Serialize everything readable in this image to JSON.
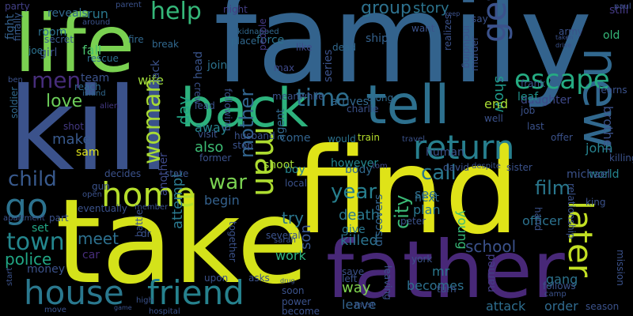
{
  "words": [
    {
      "t": "find",
      "c": "#dfe318"
    },
    {
      "t": "take",
      "c": "#d4e21a"
    },
    {
      "t": "family",
      "c": "#33638d"
    },
    {
      "t": "kill",
      "c": "#3b528b"
    },
    {
      "t": "father",
      "c": "#482878"
    },
    {
      "t": "life",
      "c": "#7ad151"
    },
    {
      "t": "back",
      "c": "#2db27d"
    },
    {
      "t": "tell",
      "c": "#2d708e"
    },
    {
      "t": "home",
      "c": "#b5de2b"
    },
    {
      "t": "house",
      "c": "#2a788e"
    },
    {
      "t": "friend",
      "c": "#26828e"
    },
    {
      "t": "new",
      "c": "#31688e"
    },
    {
      "t": "return",
      "c": "#277f8e"
    },
    {
      "t": "later",
      "c": "#c2df23"
    },
    {
      "t": "man",
      "c": "#addc30"
    },
    {
      "t": "go",
      "c": "#2c728e"
    },
    {
      "t": "men",
      "c": "#472d7b"
    },
    {
      "t": "time",
      "c": "#2e6e8e"
    },
    {
      "t": "escape",
      "c": "#25ab82"
    },
    {
      "t": "get",
      "c": "#3b528b"
    },
    {
      "t": "help",
      "c": "#35b779"
    },
    {
      "t": "woman",
      "c": "#a8db34"
    },
    {
      "t": "town",
      "c": "#24878e"
    },
    {
      "t": "child",
      "c": "#38598c"
    },
    {
      "t": "war",
      "c": "#7ad151"
    },
    {
      "t": "year",
      "c": "#277f8e"
    },
    {
      "t": "love",
      "c": "#6ccd5a"
    },
    {
      "t": "mother",
      "c": "#32658e"
    },
    {
      "t": "group",
      "c": "#2d718e"
    },
    {
      "t": "city",
      "c": "#3aba76"
    },
    {
      "t": "call",
      "c": "#2a778e"
    },
    {
      "t": "film",
      "c": "#2a788e"
    },
    {
      "t": "meet",
      "c": "#2d708e"
    },
    {
      "t": "police",
      "c": "#21a685"
    },
    {
      "t": "day",
      "c": "#22a785"
    },
    {
      "t": "school",
      "c": "#3b528b"
    },
    {
      "t": "killed",
      "c": "#2c738e"
    },
    {
      "t": "death",
      "c": "#2a788e"
    },
    {
      "t": "try",
      "c": "#2a768e"
    },
    {
      "t": "make",
      "c": "#38598c"
    },
    {
      "t": "also",
      "c": "#3dbc74"
    },
    {
      "t": "story",
      "c": "#2b748e"
    },
    {
      "t": "show",
      "c": "#1f998a"
    },
    {
      "t": "attempt",
      "c": "#2a788e"
    },
    {
      "t": "son",
      "c": "#39558c"
    },
    {
      "t": "way",
      "c": "#7fd34e"
    },
    {
      "t": "brother",
      "c": "#3b528b"
    },
    {
      "t": "john",
      "c": "#26828e"
    },
    {
      "t": "world",
      "c": "#25848e"
    },
    {
      "t": "daughter",
      "c": "#3e4989"
    },
    {
      "t": "see",
      "c": "#2e6f8e"
    },
    {
      "t": "plan",
      "c": "#2a778e"
    },
    {
      "t": "end",
      "c": "#a8db34"
    },
    {
      "t": "young",
      "c": "#38b977"
    },
    {
      "t": "officer",
      "c": "#2c728e"
    },
    {
      "t": "becomes",
      "c": "#2d708e"
    },
    {
      "t": "attack",
      "c": "#2e6d8e"
    },
    {
      "t": "order",
      "c": "#306a8e"
    },
    {
      "t": "leave",
      "c": "#33628d"
    },
    {
      "t": "mr",
      "c": "#2a788e"
    },
    {
      "t": "gang",
      "c": "#2c738e"
    },
    {
      "t": "body",
      "c": "#306a8e"
    },
    {
      "t": "boy",
      "c": "#25838e"
    },
    {
      "t": "shoot",
      "c": "#a2da37"
    },
    {
      "t": "work",
      "c": "#2db27d"
    },
    {
      "t": "begin",
      "c": "#34618d"
    },
    {
      "t": "wife",
      "c": "#9dd93b"
    },
    {
      "t": "away",
      "c": "#25848e"
    },
    {
      "t": "fall",
      "c": "#4ac16d"
    },
    {
      "t": "run",
      "c": "#2a788e"
    },
    {
      "t": "room",
      "c": "#2d708e"
    },
    {
      "t": "girl",
      "c": "#3b528b"
    },
    {
      "t": "team",
      "c": "#3b528b"
    },
    {
      "t": "set",
      "c": "#22a785"
    },
    {
      "t": "car",
      "c": "#472d7b"
    },
    {
      "t": "money",
      "c": "#3b528b"
    },
    {
      "t": "sam",
      "c": "#dfe318"
    },
    {
      "t": "leaf",
      "c": "#20928c"
    },
    {
      "t": "old",
      "c": "#35b779"
    },
    {
      "t": "still",
      "c": "#443983"
    },
    {
      "t": "force",
      "c": "#2c738e"
    },
    {
      "t": "ship",
      "c": "#34618d"
    },
    {
      "t": "reveals",
      "c": "#31688e"
    },
    {
      "t": "fight",
      "c": "#34618d"
    },
    {
      "t": "next",
      "c": "#2e6e8e"
    },
    {
      "t": "however",
      "c": "#24878e"
    },
    {
      "t": "arrives",
      "c": "#31688e"
    },
    {
      "t": "series",
      "c": "#3b528b"
    },
    {
      "t": "come",
      "c": "#33638d"
    },
    {
      "t": "head",
      "c": "#3a548c"
    },
    {
      "t": "join",
      "c": "#2c728e"
    },
    {
      "t": "agent",
      "c": "#31688e"
    },
    {
      "t": "jack",
      "c": "#3b528b"
    },
    {
      "t": "discovers",
      "c": "#33638d"
    },
    {
      "t": "give",
      "c": "#2a778e"
    },
    {
      "t": "named",
      "c": "#433e85"
    },
    {
      "t": "human",
      "c": "#3b528b"
    },
    {
      "t": "michael",
      "c": "#3b528b"
    },
    {
      "t": "another",
      "c": "#3e4989"
    },
    {
      "t": "night",
      "c": "#433e85"
    },
    {
      "t": "party",
      "c": "#424086"
    },
    {
      "t": "finally",
      "c": "#38598c"
    },
    {
      "t": "joe",
      "c": "#2c728e"
    },
    {
      "t": "secret",
      "c": "#38598c"
    },
    {
      "t": "rescue",
      "c": "#2e6f8e"
    },
    {
      "t": "soldier",
      "c": "#31688e"
    },
    {
      "t": "ben",
      "c": "#3b528b"
    },
    {
      "t": "reach",
      "c": "#31688e"
    },
    {
      "t": "island",
      "c": "#31688e"
    },
    {
      "t": "shot",
      "c": "#443983"
    },
    {
      "t": "alien",
      "c": "#443983"
    },
    {
      "t": "fire",
      "c": "#31688e"
    },
    {
      "t": "break",
      "c": "#31688e"
    },
    {
      "t": "place",
      "c": "#31688e"
    },
    {
      "t": "kidnapped",
      "c": "#31688e"
    },
    {
      "t": "dead",
      "c": "#31688e"
    },
    {
      "t": "like",
      "c": "#3e4989"
    },
    {
      "t": "max",
      "c": "#3e4989"
    },
    {
      "t": "people",
      "c": "#443983"
    },
    {
      "t": "meanwhile",
      "c": "#3b528b"
    },
    {
      "t": "along",
      "c": "#31688e"
    },
    {
      "t": "charlie",
      "c": "#3b528b"
    },
    {
      "t": "realizes",
      "c": "#3b528b"
    },
    {
      "t": "train",
      "c": "#b5de2b"
    },
    {
      "t": "would",
      "c": "#2c728e"
    },
    {
      "t": "travel",
      "c": "#3b528b"
    },
    {
      "t": "tom",
      "c": "#3e4989"
    },
    {
      "t": "david",
      "c": "#3b528b"
    },
    {
      "t": "despite",
      "c": "#3b528b"
    },
    {
      "t": "sister",
      "c": "#3b528b"
    },
    {
      "t": "lead",
      "c": "#3b528b"
    },
    {
      "t": "visit",
      "c": "#3b528b"
    },
    {
      "t": "former",
      "c": "#3b528b"
    },
    {
      "t": "husband",
      "c": "#3b528b"
    },
    {
      "t": "stop",
      "c": "#3b528b"
    },
    {
      "t": "crew",
      "c": "#3b528b"
    },
    {
      "t": "following",
      "c": "#3b528b"
    },
    {
      "t": "local",
      "c": "#3b528b"
    },
    {
      "t": "decides",
      "c": "#3b528b"
    },
    {
      "t": "state",
      "c": "#3b528b"
    },
    {
      "t": "gun",
      "c": "#3b528b"
    },
    {
      "t": "open",
      "c": "#3b528b"
    },
    {
      "t": "eventually",
      "c": "#3b528b"
    },
    {
      "t": "member",
      "c": "#3b528b"
    },
    {
      "t": "part",
      "c": "#3b528b"
    },
    {
      "t": "apartment",
      "c": "#3b528b"
    },
    {
      "t": "dr",
      "c": "#3b528b"
    },
    {
      "t": "battle",
      "c": "#3b528b"
    },
    {
      "t": "upon",
      "c": "#3b528b"
    },
    {
      "t": "together",
      "c": "#3b528b"
    },
    {
      "t": "asks",
      "c": "#3b528b"
    },
    {
      "t": "several",
      "c": "#3b528b"
    },
    {
      "t": "sarah",
      "c": "#3b528b"
    },
    {
      "t": "peter",
      "c": "#3b528b"
    },
    {
      "t": "york",
      "c": "#3b528b"
    },
    {
      "t": "save",
      "c": "#3b528b"
    },
    {
      "t": "left",
      "c": "#3b528b"
    },
    {
      "t": "turn",
      "c": "#3b528b"
    },
    {
      "t": "must",
      "c": "#3b528b"
    },
    {
      "t": "leaving",
      "c": "#3b528b"
    },
    {
      "t": "power",
      "c": "#3b528b"
    },
    {
      "t": "soon",
      "c": "#3b528b"
    },
    {
      "t": "become",
      "c": "#3b528b"
    },
    {
      "t": "drug",
      "c": "#3b528b"
    },
    {
      "t": "hospital",
      "c": "#3b528b"
    },
    {
      "t": "high",
      "c": "#3b528b"
    },
    {
      "t": "move",
      "c": "#3b528b"
    },
    {
      "t": "start",
      "c": "#3b528b"
    },
    {
      "t": "game",
      "c": "#3b528b"
    },
    {
      "t": "follows",
      "c": "#3b528b"
    },
    {
      "t": "camp",
      "c": "#3b528b"
    },
    {
      "t": "season",
      "c": "#3b528b"
    },
    {
      "t": "mission",
      "c": "#3b528b"
    },
    {
      "t": "hand",
      "c": "#3b528b"
    },
    {
      "t": "relationship",
      "c": "#3b528b"
    },
    {
      "t": "king",
      "c": "#3b528b"
    },
    {
      "t": "killing",
      "c": "#3b528b"
    },
    {
      "t": "offer",
      "c": "#3b528b"
    },
    {
      "t": "last",
      "c": "#3b528b"
    },
    {
      "t": "job",
      "c": "#3b528b"
    },
    {
      "t": "well",
      "c": "#3b528b"
    },
    {
      "t": "frank",
      "c": "#3b528b"
    },
    {
      "t": "learns",
      "c": "#3b528b"
    },
    {
      "t": "army",
      "c": "#3b528b"
    },
    {
      "t": "taken",
      "c": "#3b528b"
    },
    {
      "t": "drive",
      "c": "#3b528b"
    },
    {
      "t": "keep",
      "c": "#3b528b"
    },
    {
      "t": "say",
      "c": "#3b528b"
    },
    {
      "t": "murder",
      "c": "#3b528b"
    },
    {
      "t": "including",
      "c": "#3b528b"
    },
    {
      "t": "want",
      "c": "#3b528b"
    },
    {
      "t": "paul",
      "c": "#3b528b"
    },
    {
      "t": "return",
      "c": "#3b528b"
    },
    {
      "t": "parent",
      "c": "#3b528b"
    },
    {
      "t": "around",
      "c": "#3b528b"
    }
  ]
}
